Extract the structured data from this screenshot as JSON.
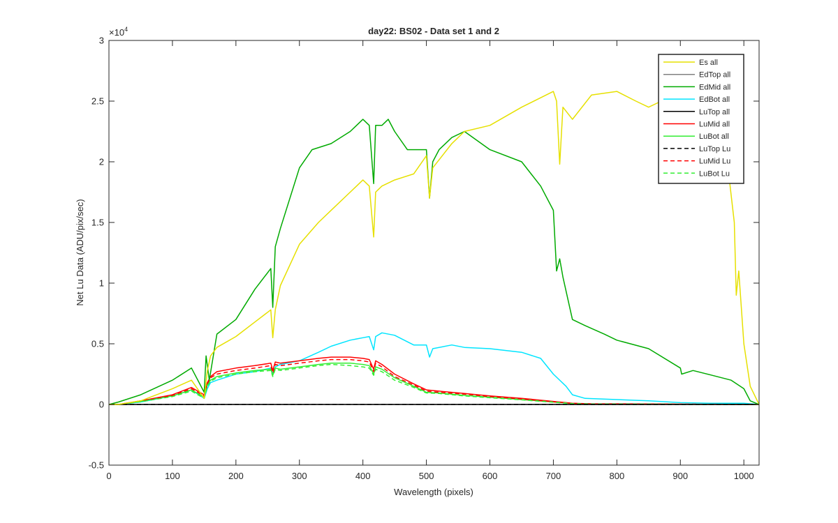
{
  "chart_data": {
    "type": "line",
    "title": "day22: BS02 - Data set 1 and 2",
    "xlabel": "Wavelength (pixels)",
    "ylabel": "Net Lu Data (ADU/pix/sec)",
    "xlim": [
      0,
      1024
    ],
    "ylim": [
      -5000,
      30000
    ],
    "x_ticks": [
      0,
      100,
      200,
      300,
      400,
      500,
      600,
      700,
      800,
      900,
      1000
    ],
    "x_tick_labels": [
      "0",
      "100",
      "200",
      "300",
      "400",
      "500",
      "600",
      "700",
      "800",
      "900",
      "1000"
    ],
    "y_ticks": [
      -5000,
      0,
      5000,
      10000,
      15000,
      20000,
      25000,
      30000
    ],
    "y_tick_labels": [
      "-0.5",
      "0",
      "0.5",
      "1",
      "1.5",
      "2",
      "2.5",
      "3"
    ],
    "y_exponent_label": "×10",
    "y_exponent_power": "4",
    "grid": false,
    "legend_position": "top-right",
    "series": [
      {
        "name": "Es all",
        "color": "#E6E000",
        "style": "solid",
        "x": [
          0,
          15,
          50,
          100,
          130,
          150,
          155,
          160,
          170,
          200,
          230,
          255,
          258,
          262,
          270,
          300,
          330,
          350,
          380,
          400,
          410,
          417,
          420,
          430,
          450,
          480,
          500,
          505,
          510,
          540,
          560,
          600,
          650,
          700,
          705,
          710,
          715,
          730,
          760,
          800,
          830,
          850,
          870,
          900,
          930,
          960,
          975,
          985,
          988,
          992,
          1000,
          1010,
          1024
        ],
        "y": [
          0,
          0,
          300,
          1300,
          2000,
          500,
          2800,
          4000,
          4700,
          5600,
          6800,
          7800,
          5500,
          7800,
          9800,
          13200,
          15000,
          16000,
          17500,
          18500,
          18000,
          13800,
          17500,
          18000,
          18500,
          19000,
          20500,
          17000,
          19500,
          21500,
          22500,
          23000,
          24500,
          25800,
          25000,
          19800,
          24500,
          23500,
          25500,
          25800,
          25000,
          24500,
          25000,
          25000,
          24000,
          23000,
          19500,
          15000,
          9000,
          11000,
          5000,
          1500,
          0
        ]
      },
      {
        "name": "EdTop all",
        "color": "#808080",
        "style": "solid",
        "x": [
          0,
          1024
        ],
        "y": [
          0,
          0
        ]
      },
      {
        "name": "EdMid all",
        "color": "#00AA00",
        "style": "solid",
        "x": [
          0,
          15,
          50,
          100,
          130,
          150,
          153,
          158,
          170,
          200,
          230,
          255,
          258,
          262,
          270,
          300,
          320,
          350,
          380,
          400,
          410,
          417,
          420,
          430,
          440,
          450,
          470,
          500,
          505,
          510,
          520,
          540,
          560,
          600,
          650,
          680,
          700,
          705,
          710,
          715,
          730,
          750,
          780,
          800,
          850,
          900,
          902,
          920,
          950,
          980,
          1000,
          1010,
          1024
        ],
        "y": [
          0,
          200,
          800,
          2000,
          3000,
          1000,
          4000,
          2000,
          5800,
          7000,
          9500,
          11200,
          8000,
          13000,
          14500,
          19500,
          21000,
          21500,
          22500,
          23500,
          23000,
          18200,
          23000,
          23000,
          23500,
          22500,
          21000,
          21000,
          17000,
          20000,
          21000,
          22000,
          22500,
          21000,
          20000,
          18000,
          16000,
          11000,
          12000,
          10500,
          7000,
          6500,
          5800,
          5300,
          4600,
          3000,
          2500,
          2800,
          2400,
          2000,
          1300,
          300,
          0
        ]
      },
      {
        "name": "EdBot all",
        "color": "#00E5FF",
        "style": "solid",
        "x": [
          0,
          15,
          50,
          100,
          130,
          150,
          155,
          160,
          170,
          200,
          230,
          255,
          258,
          262,
          270,
          300,
          330,
          350,
          380,
          400,
          410,
          417,
          420,
          430,
          450,
          480,
          500,
          505,
          510,
          540,
          560,
          600,
          650,
          680,
          700,
          720,
          730,
          750,
          800,
          850,
          900,
          950,
          1000,
          1024
        ],
        "y": [
          0,
          0,
          200,
          700,
          1200,
          500,
          1300,
          1800,
          2000,
          2500,
          2700,
          3000,
          2500,
          3100,
          3300,
          3600,
          4300,
          4800,
          5300,
          5500,
          5600,
          4500,
          5600,
          5900,
          5700,
          4900,
          4900,
          3900,
          4600,
          4900,
          4700,
          4600,
          4300,
          3800,
          2500,
          1500,
          800,
          500,
          400,
          300,
          150,
          100,
          100,
          0
        ]
      },
      {
        "name": "LuTop all",
        "color": "#000000",
        "style": "solid",
        "x": [
          0,
          1024
        ],
        "y": [
          0,
          0
        ]
      },
      {
        "name": "LuMid all",
        "color": "#FF0000",
        "style": "solid",
        "x": [
          0,
          15,
          50,
          100,
          130,
          150,
          155,
          160,
          170,
          200,
          230,
          255,
          258,
          262,
          270,
          300,
          330,
          350,
          380,
          400,
          410,
          417,
          420,
          430,
          450,
          480,
          500,
          520,
          560,
          600,
          650,
          700,
          730,
          760,
          800,
          900,
          1024
        ],
        "y": [
          0,
          0,
          300,
          800,
          1400,
          800,
          1800,
          2300,
          2700,
          3000,
          3200,
          3400,
          2800,
          3500,
          3400,
          3600,
          3800,
          3900,
          3900,
          3800,
          3700,
          2900,
          3600,
          3300,
          2500,
          1700,
          1200,
          1100,
          900,
          700,
          500,
          250,
          100,
          50,
          50,
          30,
          0
        ]
      },
      {
        "name": "LuBot all",
        "color": "#33EE33",
        "style": "solid",
        "x": [
          0,
          15,
          50,
          100,
          130,
          150,
          155,
          160,
          170,
          200,
          230,
          255,
          258,
          262,
          270,
          300,
          330,
          350,
          380,
          400,
          410,
          417,
          420,
          430,
          450,
          480,
          500,
          520,
          560,
          600,
          650,
          700,
          730,
          760,
          800,
          900,
          1024
        ],
        "y": [
          0,
          0,
          250,
          700,
          1200,
          600,
          1600,
          2000,
          2300,
          2600,
          2800,
          2900,
          2400,
          3000,
          2900,
          3100,
          3300,
          3400,
          3400,
          3300,
          3200,
          2500,
          3100,
          2900,
          2200,
          1500,
          1000,
          950,
          750,
          600,
          400,
          200,
          80,
          40,
          40,
          20,
          0
        ]
      },
      {
        "name": "LuTop Lu",
        "color": "#000000",
        "style": "dashed",
        "x": [
          0,
          1024
        ],
        "y": [
          0,
          0
        ]
      },
      {
        "name": "LuMid Lu",
        "color": "#FF0000",
        "style": "dashed",
        "x": [
          0,
          15,
          50,
          100,
          130,
          150,
          155,
          160,
          170,
          200,
          230,
          255,
          258,
          262,
          270,
          300,
          330,
          350,
          380,
          400,
          410,
          417,
          420,
          430,
          450,
          480,
          500,
          520,
          560,
          600,
          650,
          700,
          730,
          760,
          800,
          900,
          1024
        ],
        "y": [
          0,
          0,
          280,
          750,
          1300,
          700,
          1700,
          2200,
          2500,
          2800,
          3000,
          3200,
          2600,
          3300,
          3200,
          3400,
          3600,
          3700,
          3700,
          3600,
          3500,
          2700,
          3400,
          3100,
          2300,
          1600,
          1100,
          1000,
          850,
          650,
          450,
          220,
          90,
          45,
          45,
          25,
          0
        ]
      },
      {
        "name": "LuBot Lu",
        "color": "#33EE33",
        "style": "dashed",
        "x": [
          0,
          15,
          50,
          100,
          130,
          150,
          155,
          160,
          170,
          200,
          230,
          255,
          258,
          262,
          270,
          300,
          330,
          350,
          380,
          400,
          410,
          417,
          420,
          430,
          450,
          480,
          500,
          520,
          560,
          600,
          650,
          700,
          730,
          760,
          800,
          900,
          1024
        ],
        "y": [
          0,
          0,
          230,
          650,
          1100,
          500,
          1500,
          1900,
          2200,
          2500,
          2700,
          2800,
          2300,
          2900,
          2800,
          3000,
          3200,
          3300,
          3200,
          3100,
          3000,
          2400,
          2900,
          2700,
          2000,
          1400,
          950,
          900,
          700,
          550,
          380,
          180,
          70,
          35,
          35,
          20,
          0
        ]
      }
    ]
  }
}
